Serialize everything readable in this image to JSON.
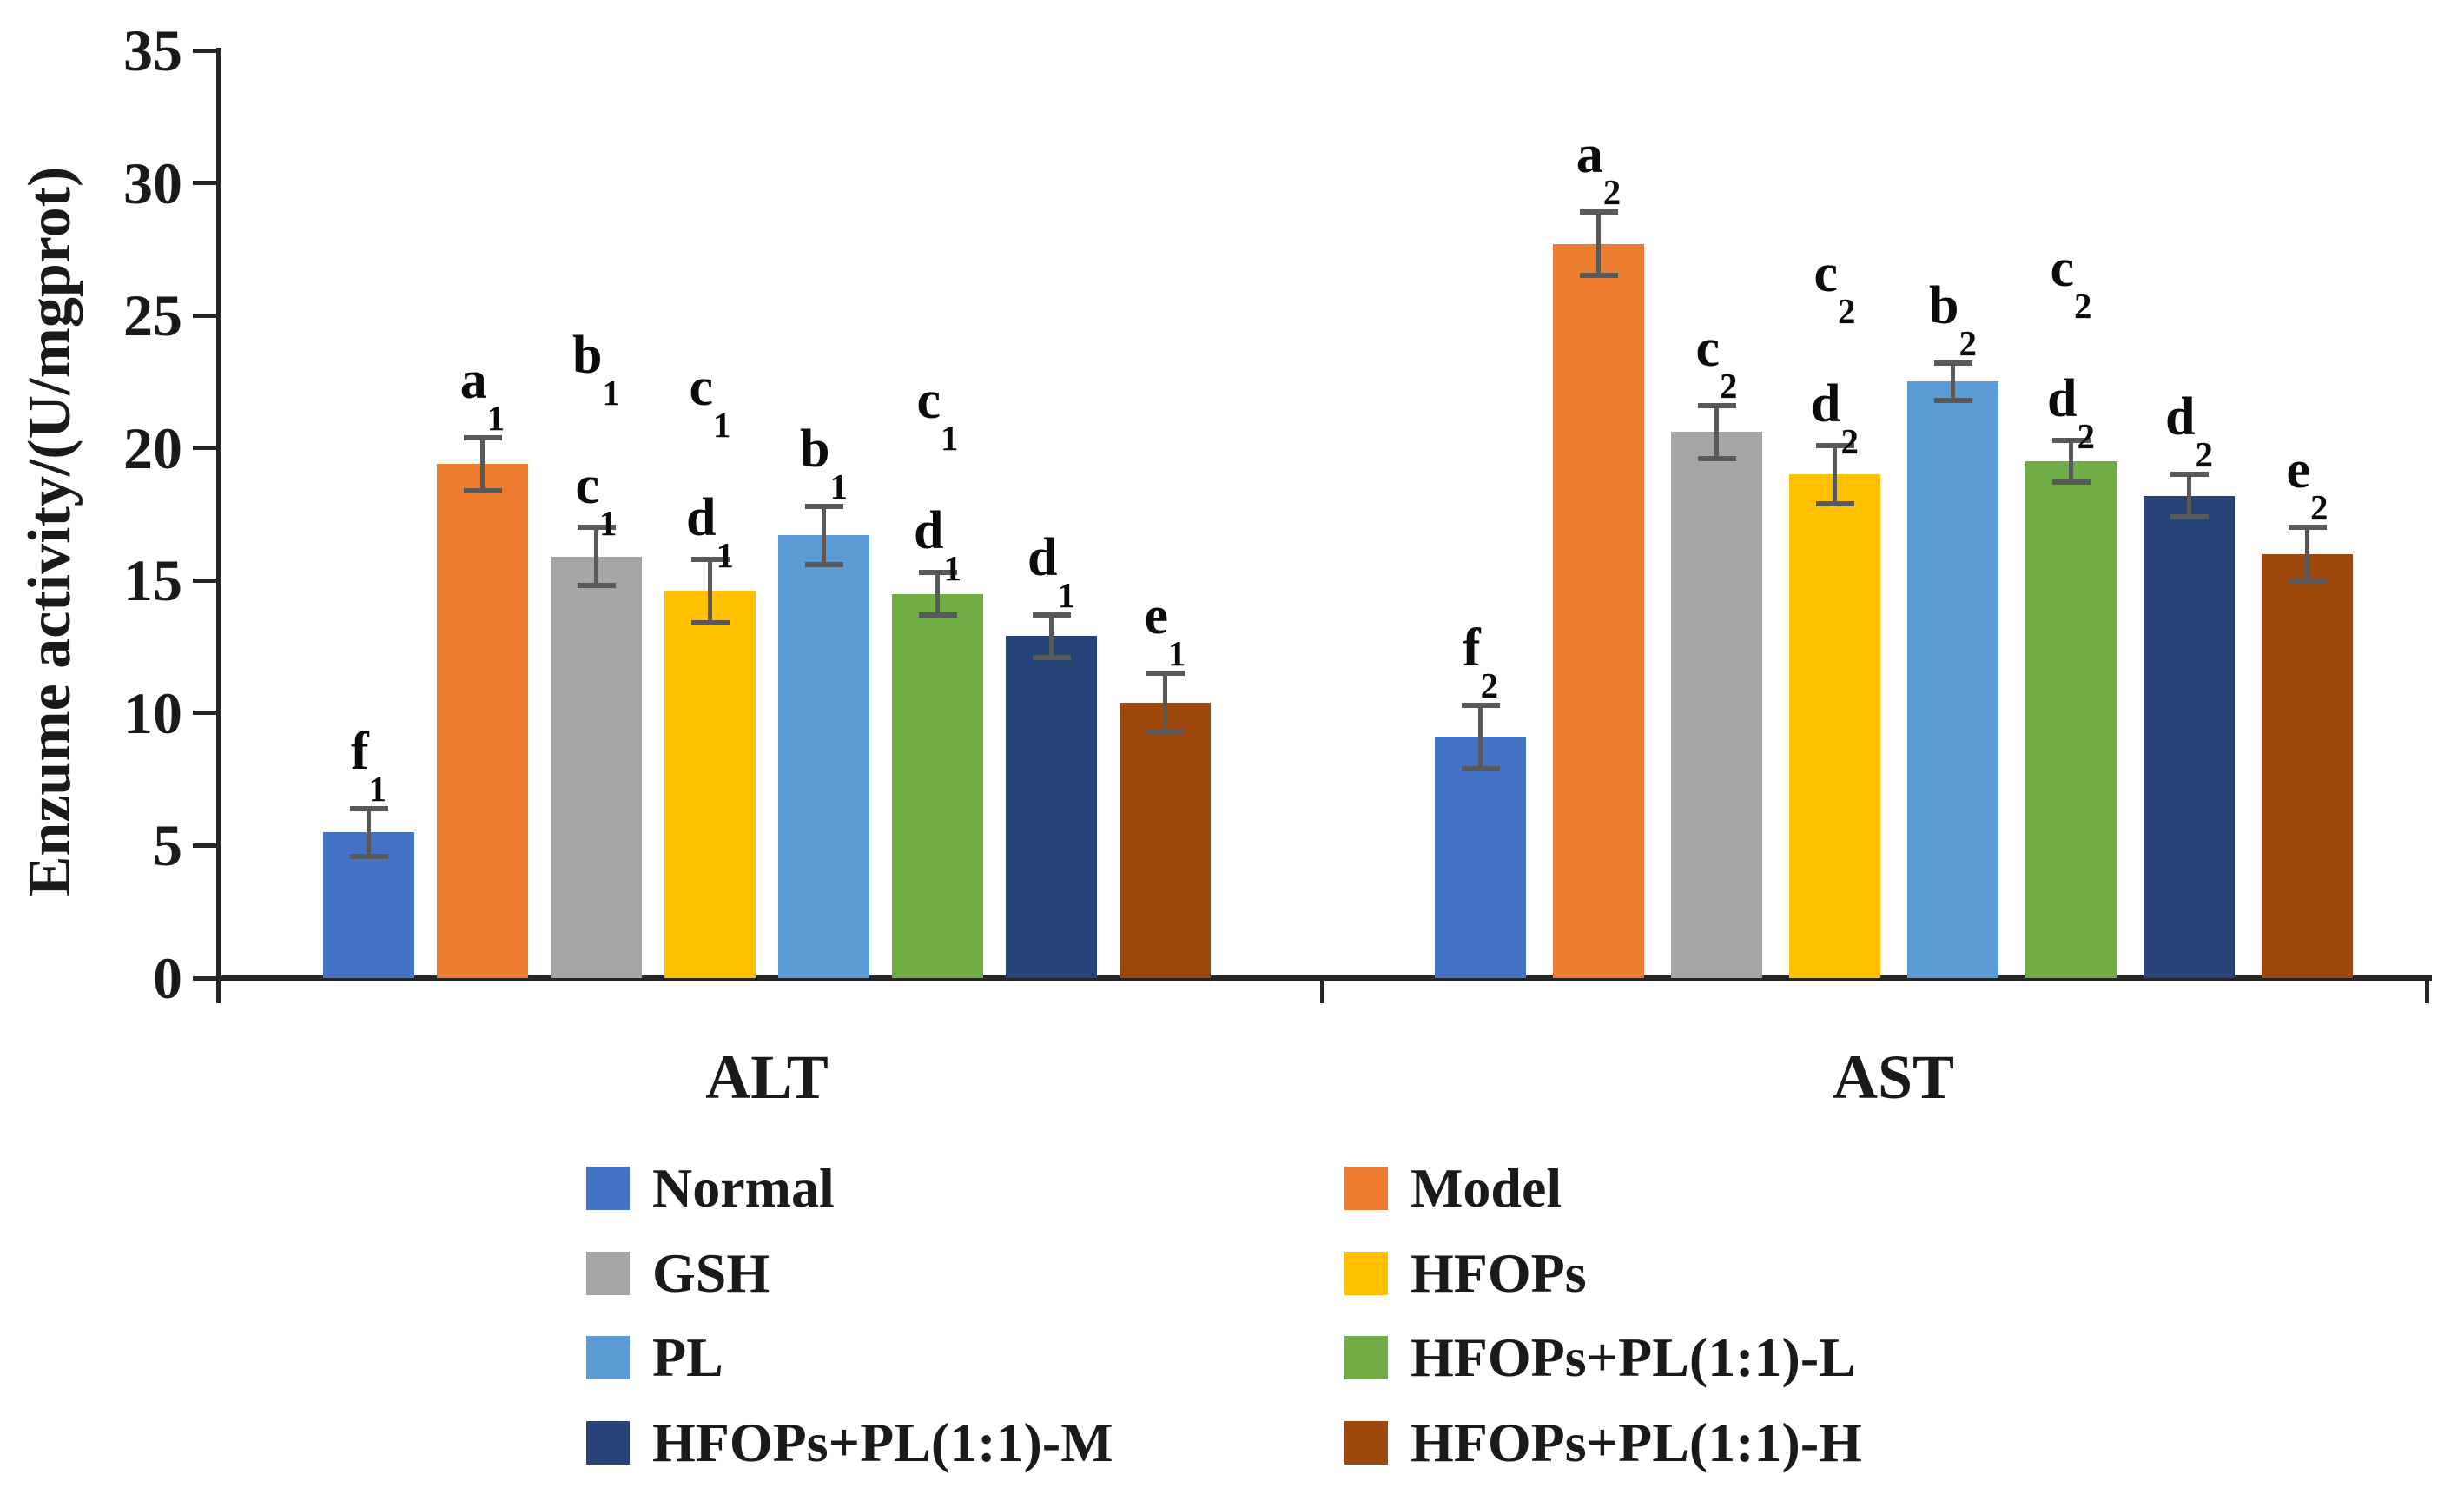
{
  "chart_data": {
    "type": "bar",
    "title": "",
    "ylabel": "Enzume activity/(U/mgprot)",
    "xlabel": "",
    "ylim": [
      0,
      35
    ],
    "yticks": [
      0,
      5,
      10,
      15,
      20,
      25,
      30,
      35
    ],
    "categories": [
      "ALT",
      "AST"
    ],
    "grid": false,
    "legend_position": "bottom, two columns",
    "axis_color": "#262626",
    "error_bar_color": "#595959",
    "series": [
      {
        "name": "Normal",
        "color": "#4472C4",
        "values": [
          5.5,
          9.1
        ],
        "errors": [
          0.9,
          1.2
        ],
        "labels": [
          [
            "f1"
          ],
          [
            "f2"
          ]
        ]
      },
      {
        "name": "Model",
        "color": "#ED7D31",
        "values": [
          19.4,
          27.7
        ],
        "errors": [
          1.0,
          1.2
        ],
        "labels": [
          [
            "a1"
          ],
          [
            "a2"
          ]
        ]
      },
      {
        "name": "GSH",
        "color": "#A5A5A5",
        "values": [
          15.9,
          20.6
        ],
        "errors": [
          1.1,
          1.0
        ],
        "labels": [
          [
            "b1",
            "c1"
          ],
          [
            "c2"
          ]
        ]
      },
      {
        "name": "HFOPs",
        "color": "#FFC000",
        "values": [
          14.6,
          19.0
        ],
        "errors": [
          1.2,
          1.1
        ],
        "labels": [
          [
            "c1",
            "d1"
          ],
          [
            "c2",
            "d2"
          ]
        ]
      },
      {
        "name": "PL",
        "color": "#5B9BD5",
        "values": [
          16.7,
          22.5
        ],
        "errors": [
          1.1,
          0.7
        ],
        "labels": [
          [
            "b1"
          ],
          [
            "b2"
          ]
        ]
      },
      {
        "name": "HFOPs+PL(1:1)-L",
        "color": "#70AD47",
        "values": [
          14.5,
          19.5
        ],
        "errors": [
          0.8,
          0.8
        ],
        "labels": [
          [
            "c1",
            "d1"
          ],
          [
            "c2",
            "d2"
          ]
        ]
      },
      {
        "name": "HFOPs+PL(1:1)-M",
        "color": "#264478",
        "values": [
          12.9,
          18.2
        ],
        "errors": [
          0.8,
          0.8
        ],
        "labels": [
          [
            "d1"
          ],
          [
            "d2"
          ]
        ]
      },
      {
        "name": "HFOPs+PL(1:1)-H",
        "color": "#9E480E",
        "values": [
          10.4,
          16.0
        ],
        "errors": [
          1.1,
          1.0
        ],
        "labels": [
          [
            "e1"
          ],
          [
            "e2"
          ]
        ]
      }
    ]
  }
}
